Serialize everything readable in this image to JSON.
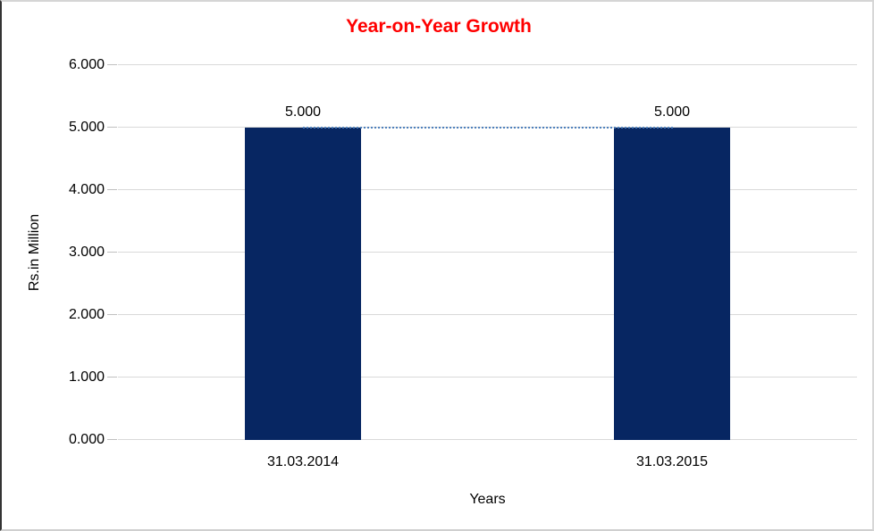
{
  "chart": {
    "title": "Year-on-Year Growth",
    "title_color": "#ff0000",
    "y_axis_title": "Rs.in Million",
    "x_axis_title": "Years",
    "colors": {
      "bar": "#072662",
      "connector_line": "#4f81bd",
      "gridline": "#d9d9d9",
      "tick_mark": "#c0c0c0",
      "text": "#000000"
    }
  },
  "chart_data": {
    "type": "bar",
    "title": "Year-on-Year Growth",
    "xlabel": "Years",
    "ylabel": "Rs.in Million",
    "categories": [
      "31.03.2014",
      "31.03.2015"
    ],
    "series": [
      {
        "name": "values-bars",
        "type": "bar",
        "values": [
          5.0,
          5.0
        ],
        "data_labels": [
          "5.000",
          "5.000"
        ]
      },
      {
        "name": "connector-dotted-line",
        "type": "line",
        "line_style": "dotted",
        "values": [
          5.0,
          5.0
        ]
      }
    ],
    "ylim": [
      0,
      6
    ],
    "yticks": [
      {
        "value": 6,
        "label": "6.000"
      },
      {
        "value": 5,
        "label": "5.000"
      },
      {
        "value": 4,
        "label": "4.000"
      },
      {
        "value": 3,
        "label": "3.000"
      },
      {
        "value": 2,
        "label": "2.000"
      },
      {
        "value": 1,
        "label": "1.000"
      },
      {
        "value": 0,
        "label": "0.000"
      }
    ],
    "grid": true,
    "legend": false
  }
}
